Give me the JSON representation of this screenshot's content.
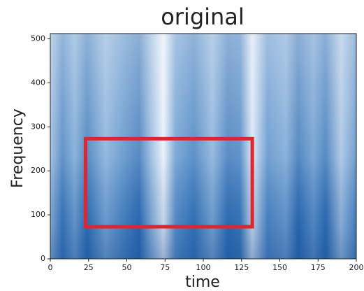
{
  "chart_data": {
    "type": "spectrogram",
    "title": "original",
    "x_label": "time",
    "y_label": "Frequency",
    "xlim": [
      0,
      200
    ],
    "ylim": [
      0,
      512
    ],
    "xticks": [
      0,
      25,
      50,
      75,
      100,
      125,
      150,
      175,
      200
    ],
    "yticks": [
      0,
      100,
      200,
      300,
      400,
      500
    ],
    "highlight": {
      "x": [
        23,
        132
      ],
      "y": [
        73,
        273
      ],
      "color": "#dd2730"
    }
  }
}
